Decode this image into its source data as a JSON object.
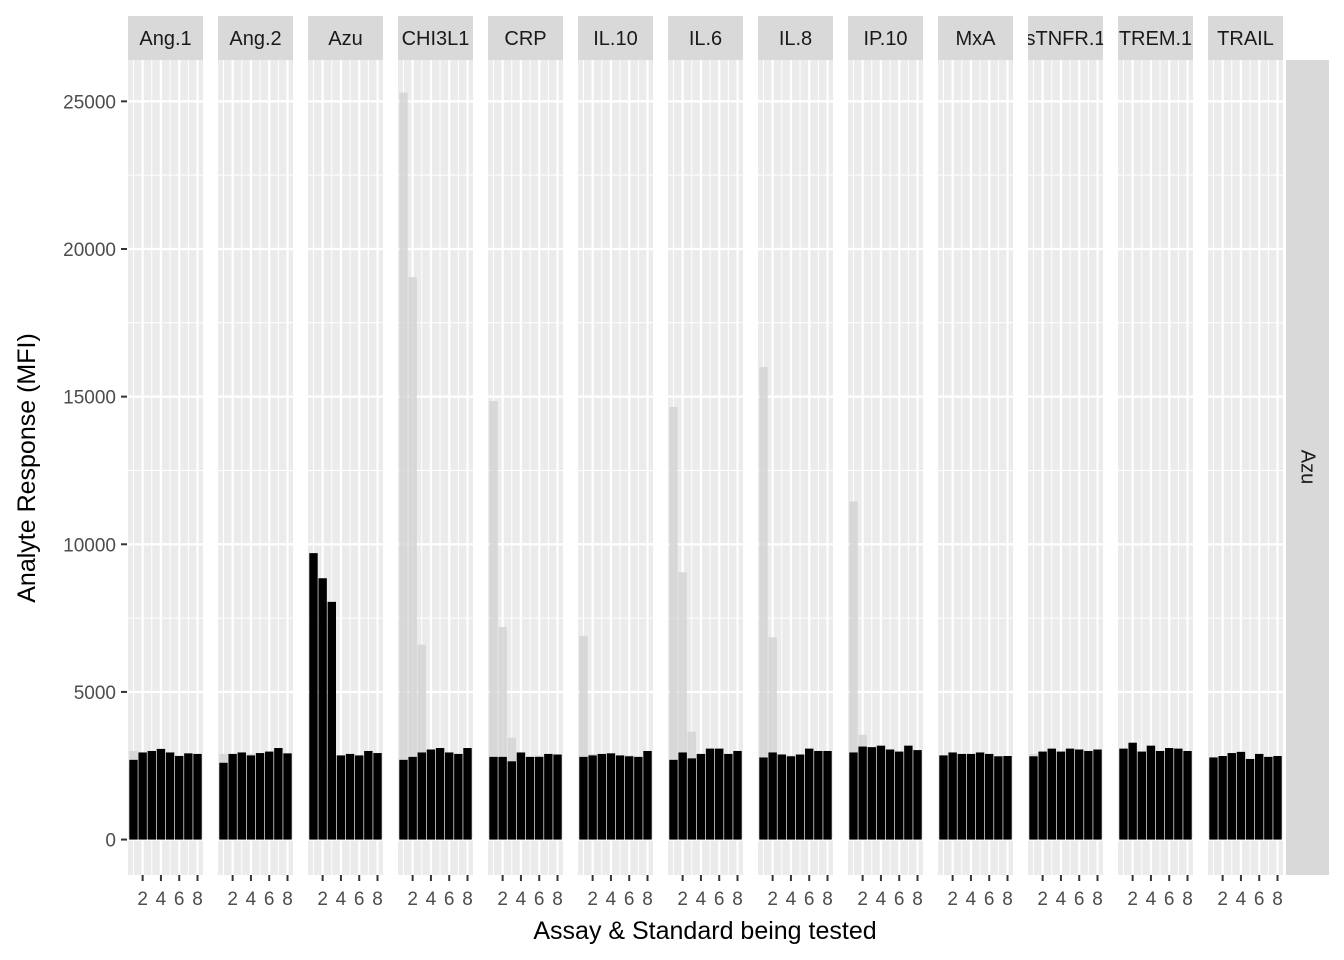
{
  "chart_data": {
    "type": "bar",
    "title": "",
    "xlabel": "Assay & Standard being tested",
    "ylabel": "Analyte Response (MFI)",
    "ylim": [
      -1200,
      26400
    ],
    "y_ticks": [
      0,
      5000,
      10000,
      15000,
      20000,
      25000
    ],
    "x_ticks": [
      2,
      4,
      6,
      8
    ],
    "x_range": [
      0.4,
      8.6
    ],
    "row_strip": "Azu",
    "grid": true,
    "colors": {
      "panel_bg": "#ebebeb",
      "grid": "#ffffff",
      "strip_bg": "#d9d9d9",
      "bar_highlight": "#000000",
      "bar_other": "#d3d3d3"
    },
    "panels": [
      {
        "name": "Ang.1",
        "highlight": [
          2700,
          2950,
          3000,
          3070,
          2950,
          2830,
          2920,
          2900
        ],
        "other": [
          3000,
          2900,
          2950,
          2800,
          2900,
          2850,
          2880,
          2900
        ]
      },
      {
        "name": "Ang.2",
        "highlight": [
          2600,
          2900,
          2950,
          2850,
          2930,
          2980,
          3100,
          2920
        ],
        "other": [
          2900,
          2800,
          2850,
          2900,
          2800,
          2900,
          2950,
          2880
        ]
      },
      {
        "name": "Azu",
        "highlight": [
          9700,
          8850,
          8050,
          2850,
          2900,
          2850,
          3000,
          2930
        ],
        "other": [
          2900,
          2850,
          2900,
          2800,
          2850,
          2800,
          2900,
          2880
        ]
      },
      {
        "name": "CHI3L1",
        "highlight": [
          2700,
          2800,
          2950,
          3050,
          3100,
          2950,
          2900,
          3100
        ],
        "other": [
          25300,
          19050,
          6600,
          3050,
          3000,
          2950,
          2900,
          3000
        ]
      },
      {
        "name": "CRP",
        "highlight": [
          2800,
          2800,
          2650,
          2950,
          2800,
          2800,
          2900,
          2880
        ],
        "other": [
          14850,
          7200,
          3450,
          2900,
          2800,
          2850,
          2900,
          2860
        ]
      },
      {
        "name": "IL.10",
        "highlight": [
          2800,
          2850,
          2900,
          2920,
          2850,
          2820,
          2800,
          3000
        ],
        "other": [
          6900,
          2900,
          2850,
          2800,
          2800,
          2850,
          2800,
          2900
        ]
      },
      {
        "name": "IL.6",
        "highlight": [
          2700,
          2950,
          2750,
          2900,
          3080,
          3080,
          2900,
          3000
        ],
        "other": [
          14650,
          9050,
          3650,
          2900,
          3000,
          3000,
          2900,
          2950
        ]
      },
      {
        "name": "IL.8",
        "highlight": [
          2780,
          2950,
          2880,
          2820,
          2880,
          3080,
          3000,
          3000
        ],
        "other": [
          16000,
          6850,
          2900,
          2850,
          2880,
          3000,
          2950,
          2950
        ]
      },
      {
        "name": "IP.10",
        "highlight": [
          2950,
          3150,
          3130,
          3180,
          3050,
          2980,
          3180,
          3030
        ],
        "other": [
          11450,
          3550,
          3100,
          3050,
          3000,
          2950,
          3100,
          3000
        ]
      },
      {
        "name": "MxA",
        "highlight": [
          2850,
          2950,
          2900,
          2900,
          2950,
          2900,
          2820,
          2830
        ],
        "other": [
          2850,
          2900,
          2850,
          2800,
          2880,
          2850,
          2800,
          2800
        ]
      },
      {
        "name": "sTNFR.1",
        "highlight": [
          2820,
          2980,
          3080,
          2980,
          3080,
          3050,
          3000,
          3050
        ],
        "other": [
          2900,
          2950,
          2950,
          2900,
          2950,
          3000,
          2900,
          2950
        ]
      },
      {
        "name": "TREM.1",
        "highlight": [
          3080,
          3280,
          2980,
          3180,
          3000,
          3100,
          3080,
          3000
        ],
        "other": [
          3000,
          3100,
          2900,
          3050,
          2950,
          3000,
          3000,
          2950
        ]
      },
      {
        "name": "TRAIL",
        "highlight": [
          2780,
          2830,
          2930,
          2970,
          2730,
          2900,
          2800,
          2830
        ],
        "other": [
          2800,
          2800,
          2850,
          2900,
          2700,
          2850,
          2780,
          2800
        ]
      }
    ]
  }
}
